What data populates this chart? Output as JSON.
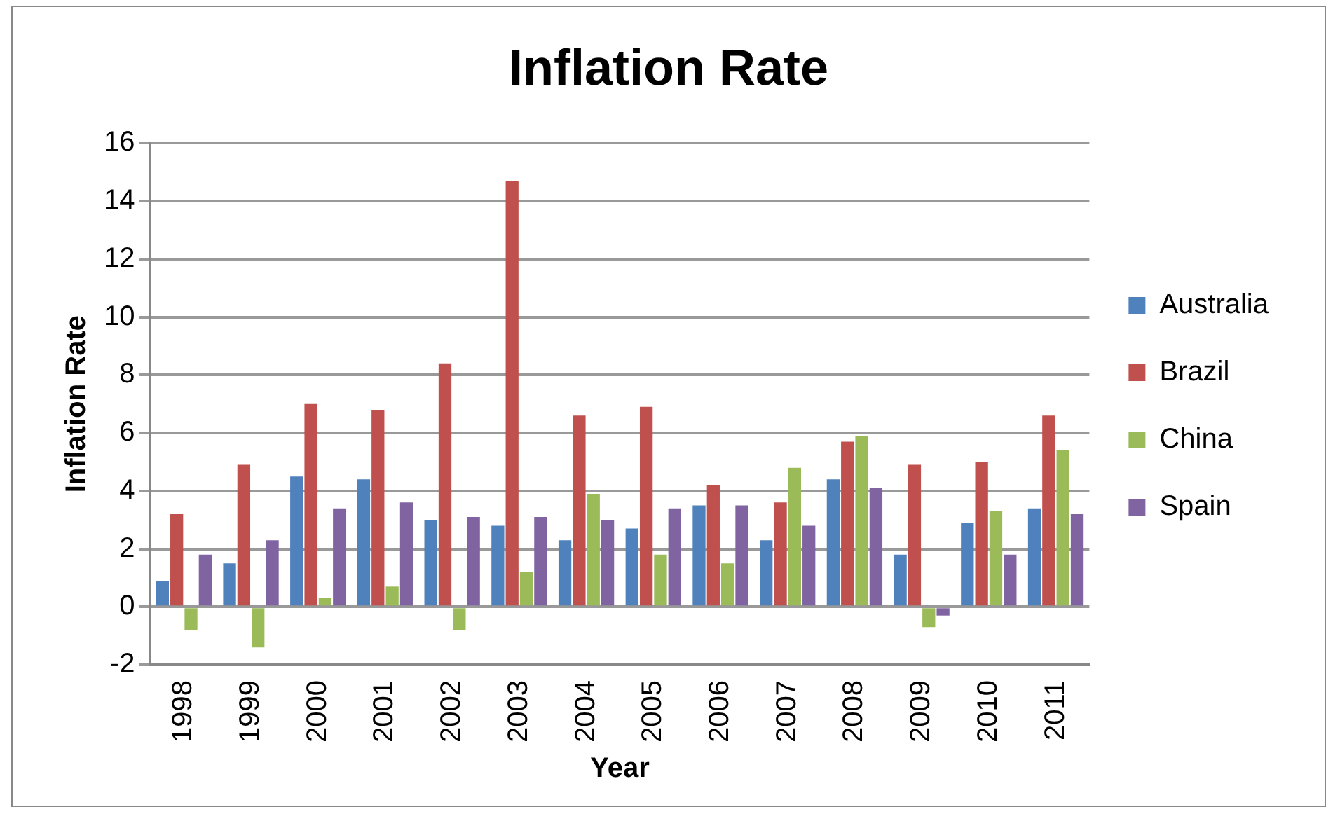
{
  "chart_data": {
    "type": "bar",
    "title": "Inflation Rate",
    "xlabel": "Year",
    "ylabel": "Inflation Rate",
    "categories": [
      "1998",
      "1999",
      "2000",
      "2001",
      "2002",
      "2003",
      "2004",
      "2005",
      "2006",
      "2007",
      "2008",
      "2009",
      "2010",
      "2011"
    ],
    "series": [
      {
        "name": "Australia",
        "color": "#4f81bd",
        "values": [
          0.9,
          1.5,
          4.5,
          4.4,
          3.0,
          2.8,
          2.3,
          2.7,
          3.5,
          2.3,
          4.4,
          1.8,
          2.9,
          3.4
        ]
      },
      {
        "name": "Brazil",
        "color": "#c0504d",
        "values": [
          3.2,
          4.9,
          7.0,
          6.8,
          8.4,
          14.7,
          6.6,
          6.9,
          4.2,
          3.6,
          5.7,
          4.9,
          5.0,
          6.6
        ]
      },
      {
        "name": "China",
        "color": "#9bbb59",
        "values": [
          -0.8,
          -1.4,
          0.3,
          0.7,
          -0.8,
          1.2,
          3.9,
          1.8,
          1.5,
          4.8,
          5.9,
          -0.7,
          3.3,
          5.4
        ]
      },
      {
        "name": "Spain",
        "color": "#8064a2",
        "values": [
          1.8,
          2.3,
          3.4,
          3.6,
          3.1,
          3.1,
          3.0,
          3.4,
          3.5,
          2.8,
          4.1,
          -0.3,
          1.8,
          3.2
        ]
      }
    ],
    "ylim": [
      -2,
      16
    ],
    "yticks": [
      -2,
      0,
      2,
      4,
      6,
      8,
      10,
      12,
      14,
      16
    ],
    "grid": "y",
    "legend": "right"
  }
}
